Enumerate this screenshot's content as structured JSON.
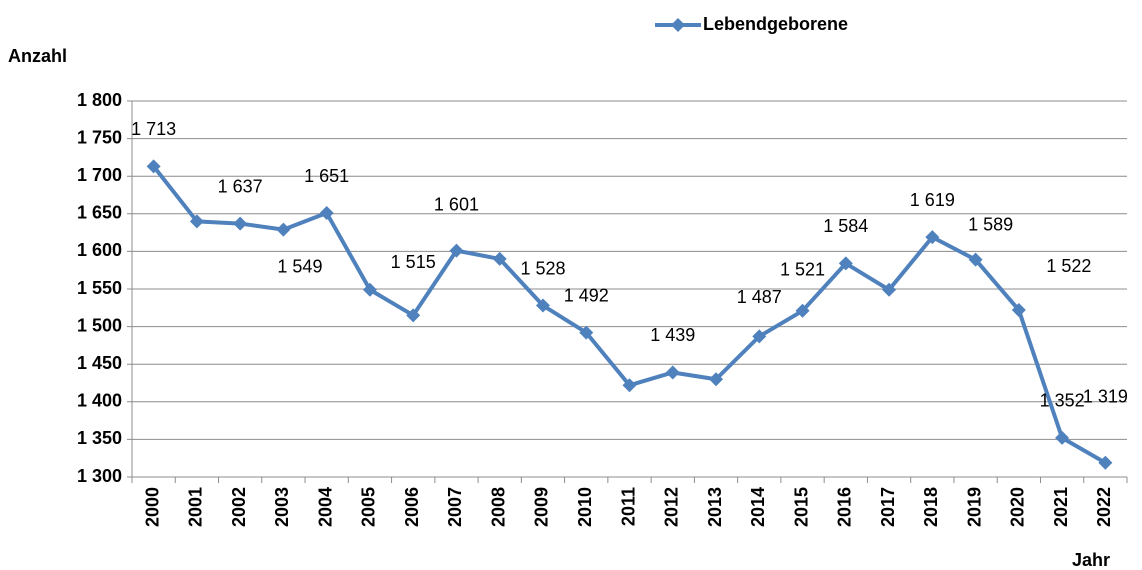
{
  "chart_data": {
    "type": "line",
    "legend": "top",
    "y_axis_label": "Anzahl",
    "x_axis_label": "Jahr",
    "categories": [
      "2000",
      "2001",
      "2002",
      "2003",
      "2004",
      "2005",
      "2006",
      "2007",
      "2008",
      "2009",
      "2010",
      "2011",
      "2012",
      "2013",
      "2014",
      "2015",
      "2016",
      "2017",
      "2018",
      "2019",
      "2020",
      "2021",
      "2022"
    ],
    "series": [
      {
        "name": "Lebendgeborene",
        "color": "#4f81bd",
        "values": [
          1713,
          1640,
          1637,
          1629,
          1651,
          1549,
          1515,
          1601,
          1590,
          1528,
          1492,
          1422,
          1439,
          1430,
          1487,
          1521,
          1584,
          1549,
          1619,
          1589,
          1522,
          1352,
          1319
        ],
        "value_labels": [
          "1 713",
          null,
          "1 637",
          null,
          "1 651",
          "1 549",
          "1 515",
          "1 601",
          null,
          "1 528",
          "1 492",
          null,
          "1 439",
          null,
          "1 487",
          "1 521",
          "1 584",
          null,
          "1 619",
          "1 589",
          "1 522",
          "1 352",
          "1 319"
        ]
      }
    ],
    "ylim": [
      1300,
      1800
    ],
    "yticks": [
      {
        "value": 1300,
        "label": "1 300"
      },
      {
        "value": 1350,
        "label": "1 350"
      },
      {
        "value": 1400,
        "label": "1 400"
      },
      {
        "value": 1450,
        "label": "1 450"
      },
      {
        "value": 1500,
        "label": "1 500"
      },
      {
        "value": 1550,
        "label": "1 550"
      },
      {
        "value": 1600,
        "label": "1 600"
      },
      {
        "value": 1650,
        "label": "1 650"
      },
      {
        "value": 1700,
        "label": "1 700"
      },
      {
        "value": 1750,
        "label": "1 750"
      },
      {
        "value": 1800,
        "label": "1 800"
      }
    ],
    "grid": true
  }
}
